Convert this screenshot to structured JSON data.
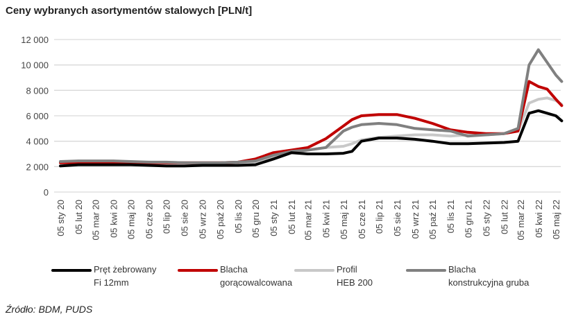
{
  "chart_data": {
    "type": "line",
    "title": "Ceny wybranych asortymentów stalowych [PLN/t]",
    "ylim": [
      0,
      12000
    ],
    "yticks": [
      "0",
      "2 000",
      "4 000",
      "6 000",
      "8 000",
      "10 000",
      "12 000"
    ],
    "ytick_values": [
      0,
      2000,
      4000,
      6000,
      8000,
      10000,
      12000
    ],
    "grid": true,
    "legend_position": "bottom",
    "xticks": [
      "05 sty 20",
      "05 lut 20",
      "05 mar 20",
      "05 kwi 20",
      "05 maj 20",
      "05 cze 20",
      "05 lip 20",
      "05 sie 20",
      "05 wrz 20",
      "05 paź 20",
      "05 lis 20",
      "05 gru 20",
      "05 sty 21",
      "05 lut 21",
      "05 mar 21",
      "05 kwi 21",
      "05 maj 21",
      "05 cze 21",
      "05 lip 21",
      "05 sie 21",
      "05 wrz 21",
      "05 paź 21",
      "05 lis 21",
      "05 gru 21",
      "05 sty 22",
      "05 lut 22",
      "05 mar 22",
      "05 kwi 22",
      "05 maj 22"
    ],
    "xtick_dates": [
      "2020-01-05",
      "2020-02-05",
      "2020-03-05",
      "2020-04-05",
      "2020-05-05",
      "2020-06-05",
      "2020-07-05",
      "2020-08-05",
      "2020-09-05",
      "2020-10-05",
      "2020-11-05",
      "2020-12-05",
      "2021-01-05",
      "2021-02-05",
      "2021-03-05",
      "2021-04-05",
      "2021-05-05",
      "2021-06-05",
      "2021-07-05",
      "2021-08-05",
      "2021-09-05",
      "2021-10-05",
      "2021-11-05",
      "2021-12-05",
      "2022-01-05",
      "2022-02-05",
      "2022-03-05",
      "2022-04-05",
      "2022-05-05"
    ],
    "x": [
      "2020-01-05",
      "2020-02-05",
      "2020-03-05",
      "2020-04-05",
      "2020-05-05",
      "2020-06-05",
      "2020-07-05",
      "2020-08-05",
      "2020-09-05",
      "2020-10-05",
      "2020-11-05",
      "2020-12-05",
      "2021-01-05",
      "2021-02-05",
      "2021-03-05",
      "2021-04-05",
      "2021-05-05",
      "2021-05-20",
      "2021-06-05",
      "2021-07-05",
      "2021-08-05",
      "2021-09-05",
      "2021-10-05",
      "2021-11-05",
      "2021-12-05",
      "2022-01-05",
      "2022-02-05",
      "2022-03-01",
      "2022-03-20",
      "2022-04-05",
      "2022-04-20",
      "2022-05-05",
      "2022-05-15"
    ],
    "series": [
      {
        "name": "Pręt żebrowany Fi 12mm",
        "color": "#000000",
        "values": [
          2050,
          2150,
          2150,
          2150,
          2150,
          2100,
          2050,
          2050,
          2100,
          2100,
          2100,
          2150,
          2600,
          3100,
          3000,
          3000,
          3050,
          3200,
          4000,
          4250,
          4250,
          4150,
          4000,
          3800,
          3800,
          3850,
          3900,
          4000,
          6200,
          6400,
          6200,
          6000,
          5600
        ]
      },
      {
        "name": "Blacha gorącowalcowana",
        "color": "#c00000",
        "values": [
          2300,
          2300,
          2300,
          2300,
          2300,
          2300,
          2300,
          2300,
          2300,
          2300,
          2350,
          2600,
          3100,
          3300,
          3500,
          4200,
          5200,
          5700,
          6000,
          6100,
          6100,
          5800,
          5400,
          4900,
          4700,
          4600,
          4600,
          4800,
          8700,
          8300,
          8100,
          7300,
          6800
        ]
      },
      {
        "name": "Profil HEB 200",
        "color": "#c8c8c8",
        "values": [
          2400,
          2400,
          2400,
          2400,
          2350,
          2350,
          2300,
          2300,
          2300,
          2300,
          2300,
          2350,
          2800,
          3100,
          3300,
          3500,
          3600,
          3800,
          4100,
          4300,
          4400,
          4500,
          4500,
          4400,
          4500,
          4500,
          4600,
          4800,
          7000,
          7300,
          7400,
          7200,
          6900
        ]
      },
      {
        "name": "Blacha konstrukcyjna gruba",
        "color": "#808080",
        "values": [
          2400,
          2450,
          2450,
          2450,
          2400,
          2350,
          2350,
          2300,
          2300,
          2300,
          2350,
          2450,
          2900,
          3200,
          3300,
          3500,
          4800,
          5100,
          5300,
          5400,
          5300,
          5000,
          4900,
          4800,
          4400,
          4500,
          4600,
          5000,
          10000,
          11200,
          10200,
          9200,
          8700
        ]
      }
    ]
  },
  "legend": [
    {
      "line1": "Pręt żebrowany",
      "line2": "Fi 12mm"
    },
    {
      "line1": "Blacha",
      "line2": "gorącowalcowana"
    },
    {
      "line1": "Profil",
      "line2": "HEB 200"
    },
    {
      "line1": "Blacha",
      "line2": "konstrukcyjna gruba"
    }
  ],
  "source": "Źródło: BDM, PUDS"
}
